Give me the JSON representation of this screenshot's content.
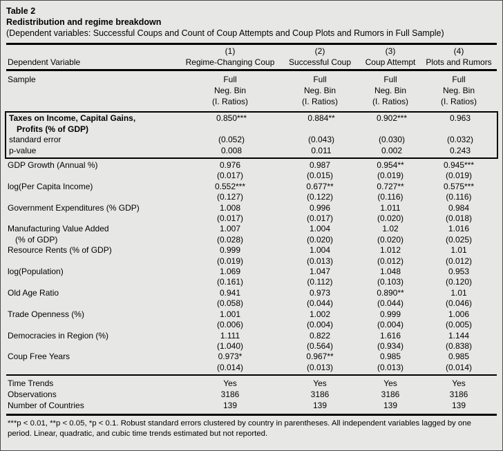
{
  "header": {
    "table_number": "Table 2",
    "title": "Redistribution and regime breakdown",
    "caption": "(Dependent variables: Successful Coups and Count of Coup Attempts and Coup Plots and Rumors in Full Sample)"
  },
  "columns": {
    "dep_var_label": "Dependent Variable",
    "numbers": [
      "(1)",
      "(2)",
      "(3)",
      "(4)"
    ],
    "names": [
      "Regime-Changing Coup",
      "Successful Coup",
      "Coup Attempt",
      "Plots and Rumors"
    ]
  },
  "sample": {
    "label": "Sample",
    "lines": [
      "Full",
      "Neg. Bin",
      "(I. Ratios)"
    ]
  },
  "highlight": {
    "label_line1": "Taxes on Income, Capital Gains,",
    "label_line2": "Profits (% of GDP)",
    "values": [
      "0.850***",
      "0.884**",
      "0.902***",
      "0.963"
    ],
    "se_label": "standard error",
    "se": [
      "(0.052)",
      "(0.043)",
      "(0.030)",
      "(0.032)"
    ],
    "p_label": "p-value",
    "p": [
      "0.008",
      "0.011",
      "0.002",
      "0.243"
    ]
  },
  "rows": [
    {
      "label": "GDP Growth (Annual %)",
      "label2": "",
      "values": [
        "0.976",
        "0.987",
        "0.954**",
        "0.945***"
      ],
      "se": [
        "(0.017)",
        "(0.015)",
        "(0.019)",
        "(0.019)"
      ]
    },
    {
      "label": "log(Per Capita Income)",
      "label2": "",
      "values": [
        "0.552***",
        "0.677**",
        "0.727**",
        "0.575***"
      ],
      "se": [
        "(0.127)",
        "(0.122)",
        "(0.116)",
        "(0.116)"
      ]
    },
    {
      "label": "Government Expenditures (% GDP)",
      "label2": "",
      "values": [
        "1.008",
        "0.996",
        "1.011",
        "0.984"
      ],
      "se": [
        "(0.017)",
        "(0.017)",
        "(0.020)",
        "(0.018)"
      ]
    },
    {
      "label": "Manufacturing Value Added",
      "label2": "(% of GDP)",
      "values": [
        "1.007",
        "1.004",
        "1.02",
        "1.016"
      ],
      "se": [
        "(0.028)",
        "(0.020)",
        "(0.020)",
        "(0.025)"
      ]
    },
    {
      "label": "Resource Rents (% of GDP)",
      "label2": "",
      "values": [
        "0.999",
        "1.004",
        "1.012",
        "1.01"
      ],
      "se": [
        "(0.019)",
        "(0.013)",
        "(0.012)",
        "(0.012)"
      ]
    },
    {
      "label": "log(Population)",
      "label2": "",
      "values": [
        "1.069",
        "1.047",
        "1.048",
        "0.953"
      ],
      "se": [
        "(0.161)",
        "(0.112)",
        "(0.103)",
        "(0.120)"
      ]
    },
    {
      "label": "Old Age Ratio",
      "label2": "",
      "values": [
        "0.941",
        "0.973",
        "0.890**",
        "1.01"
      ],
      "se": [
        "(0.058)",
        "(0.044)",
        "(0.044)",
        "(0.046)"
      ]
    },
    {
      "label": "Trade Openness (%)",
      "label2": "",
      "values": [
        "1.001",
        "1.002",
        "0.999",
        "1.006"
      ],
      "se": [
        "(0.006)",
        "(0.004)",
        "(0.004)",
        "(0.005)"
      ]
    },
    {
      "label": "Democracies in Region (%)",
      "label2": "",
      "values": [
        "1.111",
        "0.822",
        "1.616",
        "1.144"
      ],
      "se": [
        "(1.040)",
        "(0.564)",
        "(0.934)",
        "(0.838)"
      ]
    },
    {
      "label": "Coup Free Years",
      "label2": "",
      "values": [
        "0.973*",
        "0.967**",
        "0.985",
        "0.985"
      ],
      "se": [
        "(0.014)",
        "(0.013)",
        "(0.013)",
        "(0.014)"
      ]
    }
  ],
  "bottom": [
    {
      "label": "Time Trends",
      "values": [
        "Yes",
        "Yes",
        "Yes",
        "Yes"
      ]
    },
    {
      "label": "Observations",
      "values": [
        "3186",
        "3186",
        "3186",
        "3186"
      ]
    },
    {
      "label": "Number of Countries",
      "values": [
        "139",
        "139",
        "139",
        "139"
      ]
    }
  ],
  "footnote": "***p < 0.01, **p < 0.05, *p < 0.1. Robust standard errors clustered by country in parentheses. All independent variables lagged by one period. Linear, quadratic, and cubic time trends estimated but not reported."
}
